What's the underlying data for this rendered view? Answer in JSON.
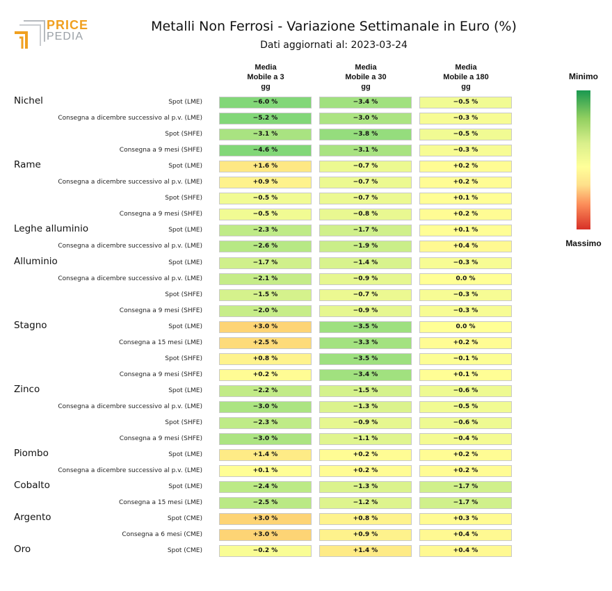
{
  "header": {
    "title": "Metalli Non Ferrosi - Variazione Settimanale in Euro (%)",
    "subtitle": "Dati aggiornati al: 2023-03-24",
    "logo_top": "PRICE",
    "logo_bottom": "PEDIA"
  },
  "legend": {
    "top": "Minimo",
    "bottom": "Massimo"
  },
  "chart_data": {
    "type": "heatmap",
    "title": "Metalli Non Ferrosi - Variazione Settimanale in Euro (%)",
    "subtitle": "Dati aggiornati al: 2023-03-24",
    "columns": [
      "Media\nMobile a 3\ngg",
      "Media\nMobile a 30\ngg",
      "Media\nMobile a 180\ngg"
    ],
    "colorscale": {
      "min_label": "Minimo",
      "max_label": "Massimo",
      "min_color": "#1a9850",
      "mid_color": "#ffff99",
      "max_color": "#d73027"
    },
    "unit_suffix": " %",
    "groups": [
      {
        "name": "Nichel",
        "rows": [
          {
            "label": "Spot (LME)",
            "values": [
              -6.0,
              -3.4,
              -0.5
            ]
          },
          {
            "label": "Consegna a dicembre successivo al p.v. (LME)",
            "values": [
              -5.2,
              -3.0,
              -0.3
            ]
          },
          {
            "label": "Spot (SHFE)",
            "values": [
              -3.1,
              -3.8,
              -0.5
            ]
          },
          {
            "label": "Consegna a 9 mesi (SHFE)",
            "values": [
              -4.6,
              -3.1,
              -0.3
            ]
          }
        ]
      },
      {
        "name": "Rame",
        "rows": [
          {
            "label": "Spot (LME)",
            "values": [
              1.6,
              -0.7,
              0.2
            ]
          },
          {
            "label": "Consegna a dicembre successivo al p.v. (LME)",
            "values": [
              0.9,
              -0.7,
              0.2
            ]
          },
          {
            "label": "Spot (SHFE)",
            "values": [
              -0.5,
              -0.7,
              0.1
            ]
          },
          {
            "label": "Consegna a 9 mesi (SHFE)",
            "values": [
              -0.5,
              -0.8,
              0.2
            ]
          }
        ]
      },
      {
        "name": "Leghe alluminio",
        "rows": [
          {
            "label": "Spot (LME)",
            "values": [
              -2.3,
              -1.7,
              0.1
            ]
          },
          {
            "label": "Consegna a dicembre successivo al p.v. (LME)",
            "values": [
              -2.6,
              -1.9,
              0.4
            ]
          }
        ]
      },
      {
        "name": "Alluminio",
        "rows": [
          {
            "label": "Spot (LME)",
            "values": [
              -1.7,
              -1.4,
              -0.3
            ]
          },
          {
            "label": "Consegna a dicembre successivo al p.v. (LME)",
            "values": [
              -2.1,
              -0.9,
              0.0
            ]
          },
          {
            "label": "Spot (SHFE)",
            "values": [
              -1.5,
              -0.7,
              -0.3
            ]
          },
          {
            "label": "Consegna a 9 mesi (SHFE)",
            "values": [
              -2.0,
              -0.9,
              -0.3
            ]
          }
        ]
      },
      {
        "name": "Stagno",
        "rows": [
          {
            "label": "Spot (LME)",
            "values": [
              3.0,
              -3.5,
              0.0
            ]
          },
          {
            "label": "Consegna a 15 mesi (LME)",
            "values": [
              2.5,
              -3.3,
              0.2
            ]
          },
          {
            "label": "Spot (SHFE)",
            "values": [
              0.8,
              -3.5,
              -0.1
            ]
          },
          {
            "label": "Consegna a 9 mesi (SHFE)",
            "values": [
              0.2,
              -3.4,
              0.1
            ]
          }
        ]
      },
      {
        "name": "Zinco",
        "rows": [
          {
            "label": "Spot (LME)",
            "values": [
              -2.2,
              -1.5,
              -0.6
            ]
          },
          {
            "label": "Consegna a dicembre successivo al p.v. (LME)",
            "values": [
              -3.0,
              -1.3,
              -0.5
            ]
          },
          {
            "label": "Spot (SHFE)",
            "values": [
              -2.3,
              -0.9,
              -0.6
            ]
          },
          {
            "label": "Consegna a 9 mesi (SHFE)",
            "values": [
              -3.0,
              -1.1,
              -0.4
            ]
          }
        ]
      },
      {
        "name": "Piombo",
        "rows": [
          {
            "label": "Spot (LME)",
            "values": [
              1.4,
              0.2,
              0.2
            ]
          },
          {
            "label": "Consegna a dicembre successivo al p.v. (LME)",
            "values": [
              0.1,
              0.2,
              0.2
            ]
          }
        ]
      },
      {
        "name": "Cobalto",
        "rows": [
          {
            "label": "Spot (LME)",
            "values": [
              -2.4,
              -1.3,
              -1.7
            ]
          },
          {
            "label": "Consegna a 15 mesi (LME)",
            "values": [
              -2.5,
              -1.2,
              -1.7
            ]
          }
        ]
      },
      {
        "name": "Argento",
        "rows": [
          {
            "label": "Spot (CME)",
            "values": [
              3.0,
              0.8,
              0.3
            ]
          },
          {
            "label": "Consegna a 6 mesi (CME)",
            "values": [
              3.0,
              0.9,
              0.4
            ]
          }
        ]
      },
      {
        "name": "Oro",
        "rows": [
          {
            "label": "Spot (CME)",
            "values": [
              -0.2,
              1.4,
              0.4
            ]
          }
        ]
      }
    ]
  }
}
